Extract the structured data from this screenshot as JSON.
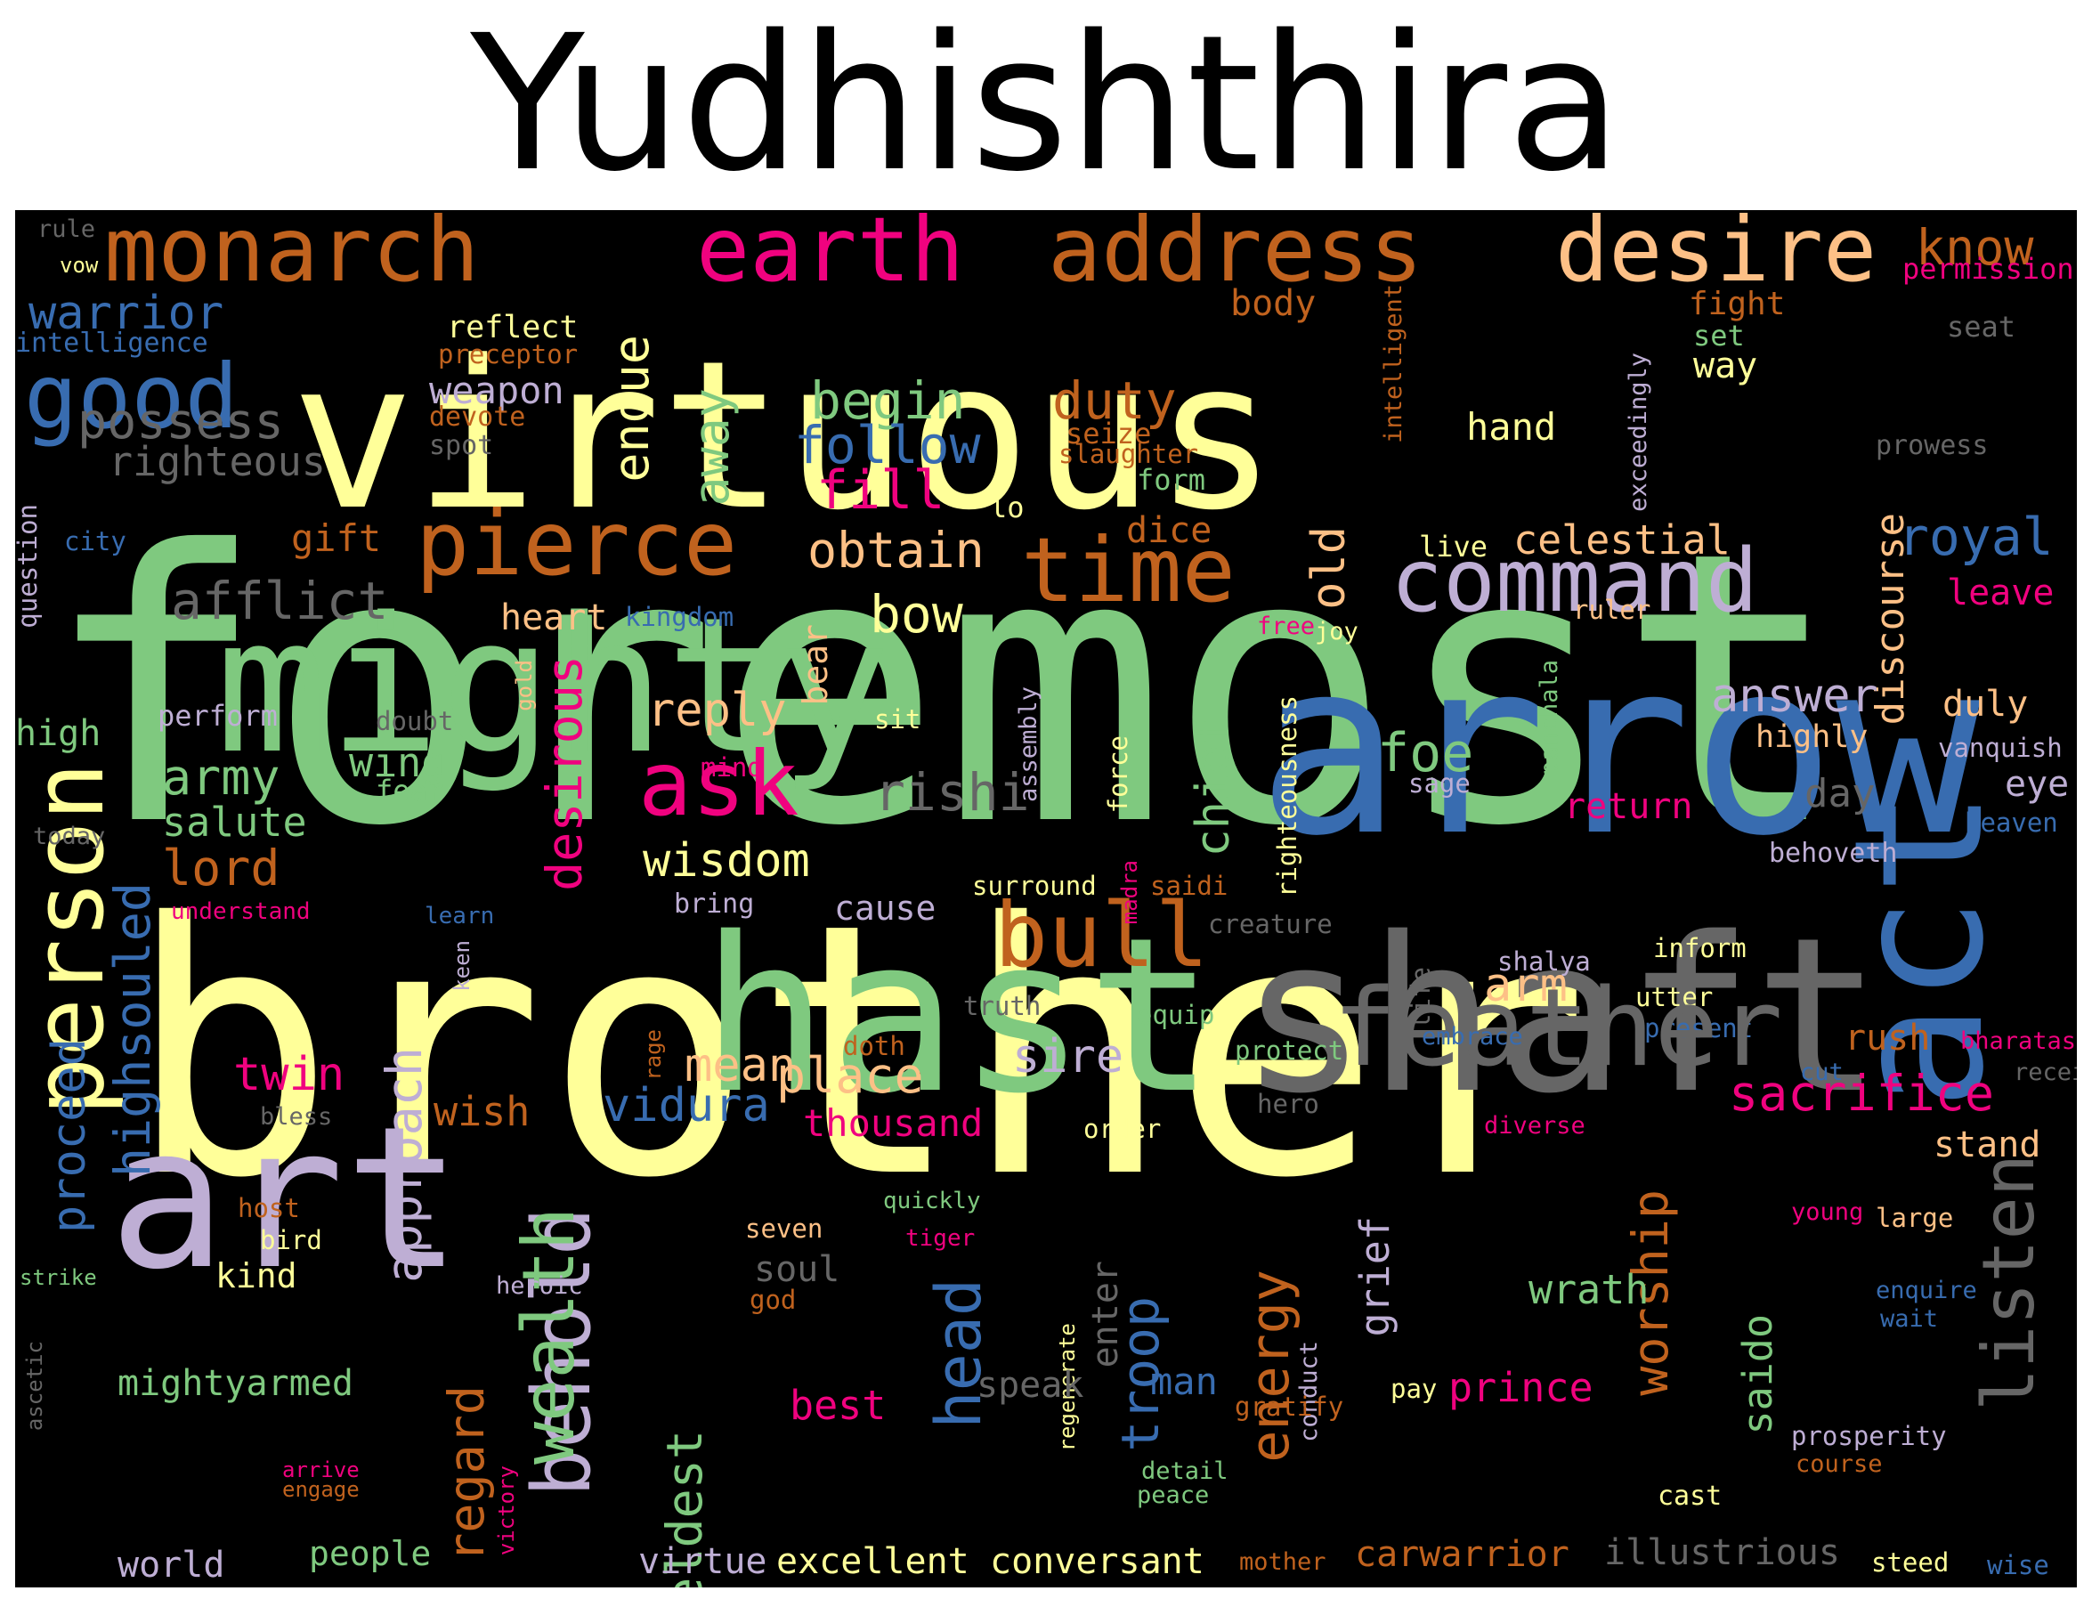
{
  "title": "Yudhishthira",
  "palette": {
    "background": "#000000",
    "yellow": "#ffff99",
    "green": "#7fc97f",
    "blue": "#386cb0",
    "orange": "#c0621e",
    "pink": "#f0027f",
    "lavender": "#beaed4",
    "peach": "#fdc086",
    "grey": "#666666"
  },
  "words": [
    "virtuous",
    "foremost",
    "brother",
    "arrow",
    "mighty",
    "hast",
    "shaft",
    "art",
    "act",
    "monarch",
    "earth",
    "address",
    "desire",
    "know",
    "permission",
    "rule",
    "vow",
    "warrior",
    "intelligence",
    "good",
    "endue",
    "begin",
    "duty",
    "body",
    "fight",
    "set",
    "way",
    "seat",
    "reflect",
    "preceptor",
    "weapon",
    "devote",
    "spot",
    "possess",
    "righteous",
    "question",
    "city",
    "gift",
    "afflict",
    "pierce",
    "away",
    "follow",
    "fill",
    "lo",
    "obtain",
    "seize",
    "slaughter",
    "form",
    "dice",
    "hand",
    "intelligent",
    "exceedingly",
    "discourse",
    "prowess",
    "royal",
    "command",
    "time",
    "old",
    "live",
    "celestial",
    "leave",
    "heart",
    "kingdom",
    "bow",
    "free",
    "joy",
    "ruler",
    "person",
    "highsouled",
    "proceed",
    "desirous",
    "reply",
    "bear",
    "gold",
    "perform",
    "doubt",
    "high",
    "wing",
    "fear",
    "army",
    "ask",
    "rishi",
    "mind",
    "sit",
    "chief",
    "force",
    "righteousness",
    "assembly",
    "foe",
    "sage",
    "panchala",
    "answer",
    "highly",
    "duly",
    "vanquish",
    "eye",
    "day",
    "heaven",
    "today",
    "salute",
    "lord",
    "understand",
    "learn",
    "wisdom",
    "bring",
    "cause",
    "surround",
    "saidi",
    "creature",
    "bull",
    "return",
    "behoveth",
    "keen",
    "life",
    "shalya",
    "inform",
    "madra",
    "arm",
    "utter",
    "present",
    "feather",
    "embrace",
    "rage",
    "doth",
    "truth",
    "equip",
    "protect",
    "sire",
    "rush",
    "bharatas",
    "cut",
    "receive",
    "twin",
    "wish",
    "bless",
    "approach",
    "vidura",
    "thousand",
    "mean",
    "place",
    "order",
    "hero",
    "sacrifice",
    "diverse",
    "stand",
    "host",
    "bird",
    "kind",
    "strike",
    "ascetic",
    "mightyarmed",
    "behold",
    "wealth",
    "quickly",
    "tiger",
    "seven",
    "soul",
    "god",
    "regard",
    "eldest",
    "head",
    "regenerate",
    "enter",
    "troop",
    "energy",
    "conduct",
    "grief",
    "worship",
    "wrath",
    "saido",
    "young",
    "large",
    "enquire",
    "wait",
    "listen",
    "heroic",
    "speak",
    "man",
    "gratify",
    "pay",
    "prince",
    "best",
    "prosperity",
    "course",
    "arrive",
    "engage",
    "victory",
    "detail",
    "peace",
    "cast",
    "people",
    "world",
    "virtue",
    "excellent",
    "conversant",
    "mother",
    "carwarrior",
    "illustrious",
    "steed",
    "wise"
  ]
}
